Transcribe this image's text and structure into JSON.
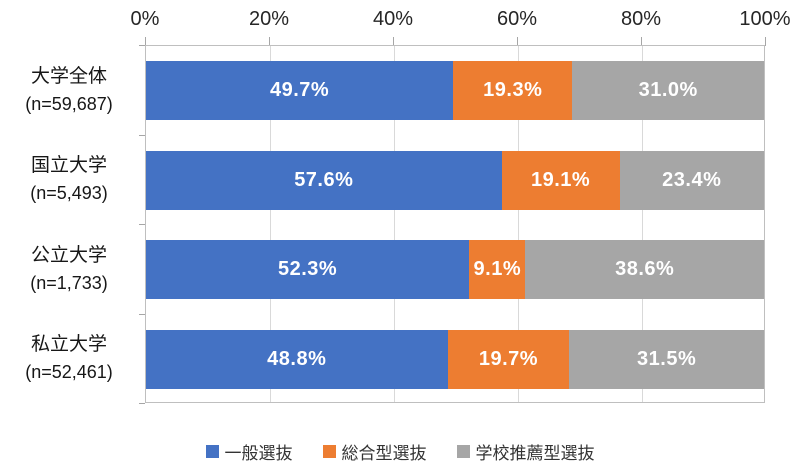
{
  "chart_data": {
    "type": "bar",
    "orientation": "horizontal",
    "stacked": true,
    "title": "",
    "xlabel": "",
    "ylabel": "",
    "x_axis": {
      "min": 0,
      "max": 100,
      "tick_interval": 20,
      "tick_labels": [
        "0%",
        "20%",
        "40%",
        "60%",
        "80%",
        "100%"
      ],
      "position": "top",
      "grid": true
    },
    "categories": [
      {
        "name": "大学全体",
        "n_label": "(n=59,687)"
      },
      {
        "name": "国立大学",
        "n_label": "(n=5,493)"
      },
      {
        "name": "公立大学",
        "n_label": "(n=1,733)"
      },
      {
        "name": "私立大学",
        "n_label": "(n=52,461)"
      }
    ],
    "series": [
      {
        "name": "一般選抜",
        "color": "#4472C4",
        "values": [
          49.7,
          57.6,
          52.3,
          48.8
        ]
      },
      {
        "name": "総合型選抜",
        "color": "#ED7D31",
        "values": [
          19.3,
          19.1,
          9.1,
          19.7
        ]
      },
      {
        "name": "学校推薦型選抜",
        "color": "#A6A6A6",
        "values": [
          31.0,
          23.4,
          38.6,
          31.5
        ]
      }
    ],
    "data_label_format": "percent_one_decimal",
    "legend_position": "bottom"
  },
  "style": {
    "gridline_color": "#D9D9D9",
    "axis_line_color": "#BFBFBF",
    "tick_color": "#A6A6A6",
    "tick_label_color": "#262626",
    "category_label_color": "#171717",
    "data_label_color": "#FFFFFF",
    "legend_text_color": "#333333",
    "background_color": "#FFFFFF"
  }
}
